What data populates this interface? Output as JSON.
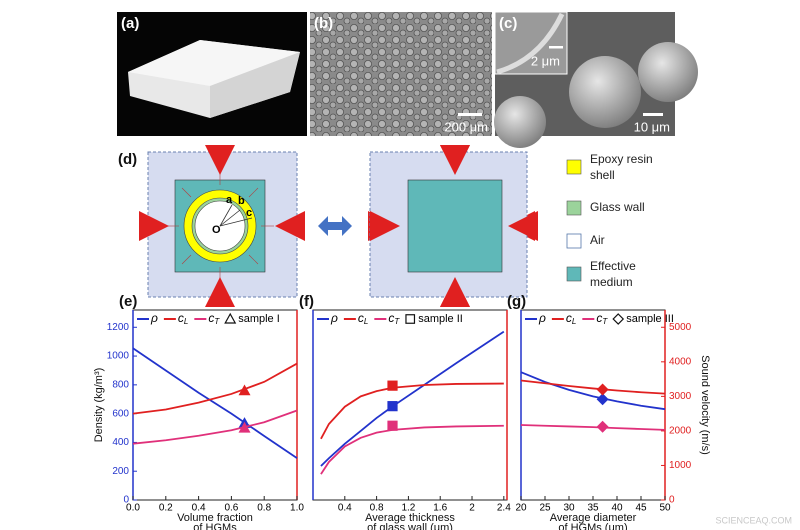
{
  "panels": {
    "a": {
      "label": "(a)"
    },
    "b": {
      "label": "(b)",
      "scale": "200 μm"
    },
    "c": {
      "label": "(c)",
      "scale": "10 μm",
      "inset_scale": "2 μm"
    },
    "d": {
      "label": "(d)",
      "radii": [
        "a",
        "b",
        "c"
      ],
      "center": "O",
      "legend": [
        [
          "Epoxy resin",
          "shell"
        ],
        [
          "Glass wall"
        ],
        [
          "Air"
        ],
        [
          "Effective",
          "medium"
        ]
      ]
    }
  },
  "watermark": "SCIENCEAQ.COM",
  "chart_data": [
    {
      "type": "line",
      "label": "(e)",
      "xlim": [
        0,
        1
      ],
      "xticks": [
        {
          "value": 0,
          "label": "0.0"
        },
        0.2,
        0.4,
        0.6,
        0.8,
        {
          "value": 1,
          "label": "1.0"
        }
      ],
      "ylim": [
        0,
        1320
      ],
      "yticks": [
        0,
        200,
        400,
        600,
        800,
        1000,
        1200
      ],
      "y2lim": [
        0,
        5500
      ],
      "ylabel": "Density (kg/m³)",
      "xlabel": [
        "Volume fraction",
        "of HGMs"
      ],
      "x": [
        0,
        0.2,
        0.4,
        0.6,
        0.8,
        1.0
      ],
      "series": [
        {
          "name": "ρ",
          "color": "#2233cc",
          "axis": "y",
          "values": [
            1054,
            900,
            745,
            600,
            445,
            291
          ],
          "sample": 534
        },
        {
          "name": "cL",
          "color": "#e02020",
          "axis": "y2",
          "values": [
            2500,
            2620,
            2820,
            3070,
            3420,
            3950
          ],
          "sample": 3170
        },
        {
          "name": "cT",
          "color": "#e0307a",
          "axis": "y2",
          "values": [
            1630,
            1730,
            1860,
            2020,
            2250,
            2590
          ],
          "sample": 2090
        }
      ],
      "sample_x": 0.68,
      "sample_name": "sample I",
      "sample_marker": "triangle"
    },
    {
      "type": "line",
      "label": "(f)",
      "xlim": [
        0,
        2.44
      ],
      "xticks": [
        0.4,
        0.8,
        1.2,
        1.6,
        2,
        2.4
      ],
      "ylim": [
        0,
        1320
      ],
      "y2lim": [
        0,
        5500
      ],
      "xlabel": [
        "Average thickness",
        "of glass wall (μm)"
      ],
      "x": [
        0.1,
        0.2,
        0.4,
        0.6,
        0.8,
        1.0,
        1.4,
        1.8,
        2.4
      ],
      "series": [
        {
          "name": "ρ",
          "color": "#2233cc",
          "axis": "y",
          "values": [
            236,
            290,
            390,
            480,
            570,
            650,
            800,
            950,
            1170
          ],
          "sample": 652
        },
        {
          "name": "cL",
          "color": "#e02020",
          "axis": "y2",
          "values": [
            1770,
            2200,
            2700,
            3000,
            3150,
            3250,
            3330,
            3360,
            3370
          ],
          "sample": 3310
        },
        {
          "name": "cT",
          "color": "#e0307a",
          "axis": "y2",
          "values": [
            750,
            1100,
            1550,
            1800,
            1950,
            2030,
            2100,
            2130,
            2150
          ],
          "sample": 2150
        }
      ],
      "sample_x": 1.0,
      "sample_name": "sample II",
      "sample_marker": "square"
    },
    {
      "type": "line",
      "label": "(g)",
      "xlim": [
        20,
        50
      ],
      "xticks": [
        20,
        25,
        30,
        35,
        40,
        45,
        50
      ],
      "ylim": [
        0,
        1320
      ],
      "y2lim": [
        0,
        5500
      ],
      "y2ticks": [
        0,
        1000,
        2000,
        3000,
        4000,
        5000
      ],
      "y2label": "Sound velocity (m/s)",
      "xlabel": [
        "Average diameter",
        "of HGMs (μm)"
      ],
      "x": [
        20,
        25,
        30,
        35,
        40,
        45,
        50
      ],
      "series": [
        {
          "name": "ρ",
          "color": "#2233cc",
          "axis": "y",
          "values": [
            888,
            820,
            765,
            720,
            685,
            655,
            631
          ],
          "sample": 700
        },
        {
          "name": "cL",
          "color": "#e02020",
          "axis": "y2",
          "values": [
            3460,
            3380,
            3300,
            3230,
            3170,
            3120,
            3080
          ],
          "sample": 3200
        },
        {
          "name": "cT",
          "color": "#e0307a",
          "axis": "y2",
          "values": [
            2170,
            2150,
            2130,
            2110,
            2080,
            2055,
            2030
          ],
          "sample": 2120
        }
      ],
      "sample_x": 37,
      "sample_name": "sample III",
      "sample_marker": "diamond"
    }
  ]
}
